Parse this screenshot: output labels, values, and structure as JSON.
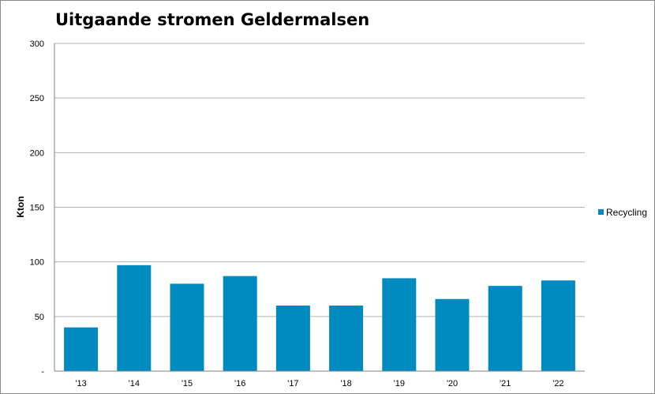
{
  "chart_data": {
    "type": "bar",
    "title": "Uitgaande stromen Geldermalsen",
    "xlabel": "",
    "ylabel": "Kton",
    "categories": [
      "'13",
      "'14",
      "'15",
      "'16",
      "'17",
      "'18",
      "'19",
      "'20",
      "'21",
      "'22"
    ],
    "series": [
      {
        "name": "Recycling",
        "color": "#008bc0",
        "values": [
          40,
          97,
          80,
          87,
          60,
          60,
          85,
          66,
          78,
          83
        ]
      }
    ],
    "ylim": [
      0,
      300
    ],
    "yticks": [
      0,
      50,
      100,
      150,
      200,
      250,
      300
    ],
    "ytick_labels": [
      "-",
      "50",
      "100",
      "150",
      "200",
      "250",
      "300"
    ],
    "grid": true,
    "legend_position": "right"
  }
}
